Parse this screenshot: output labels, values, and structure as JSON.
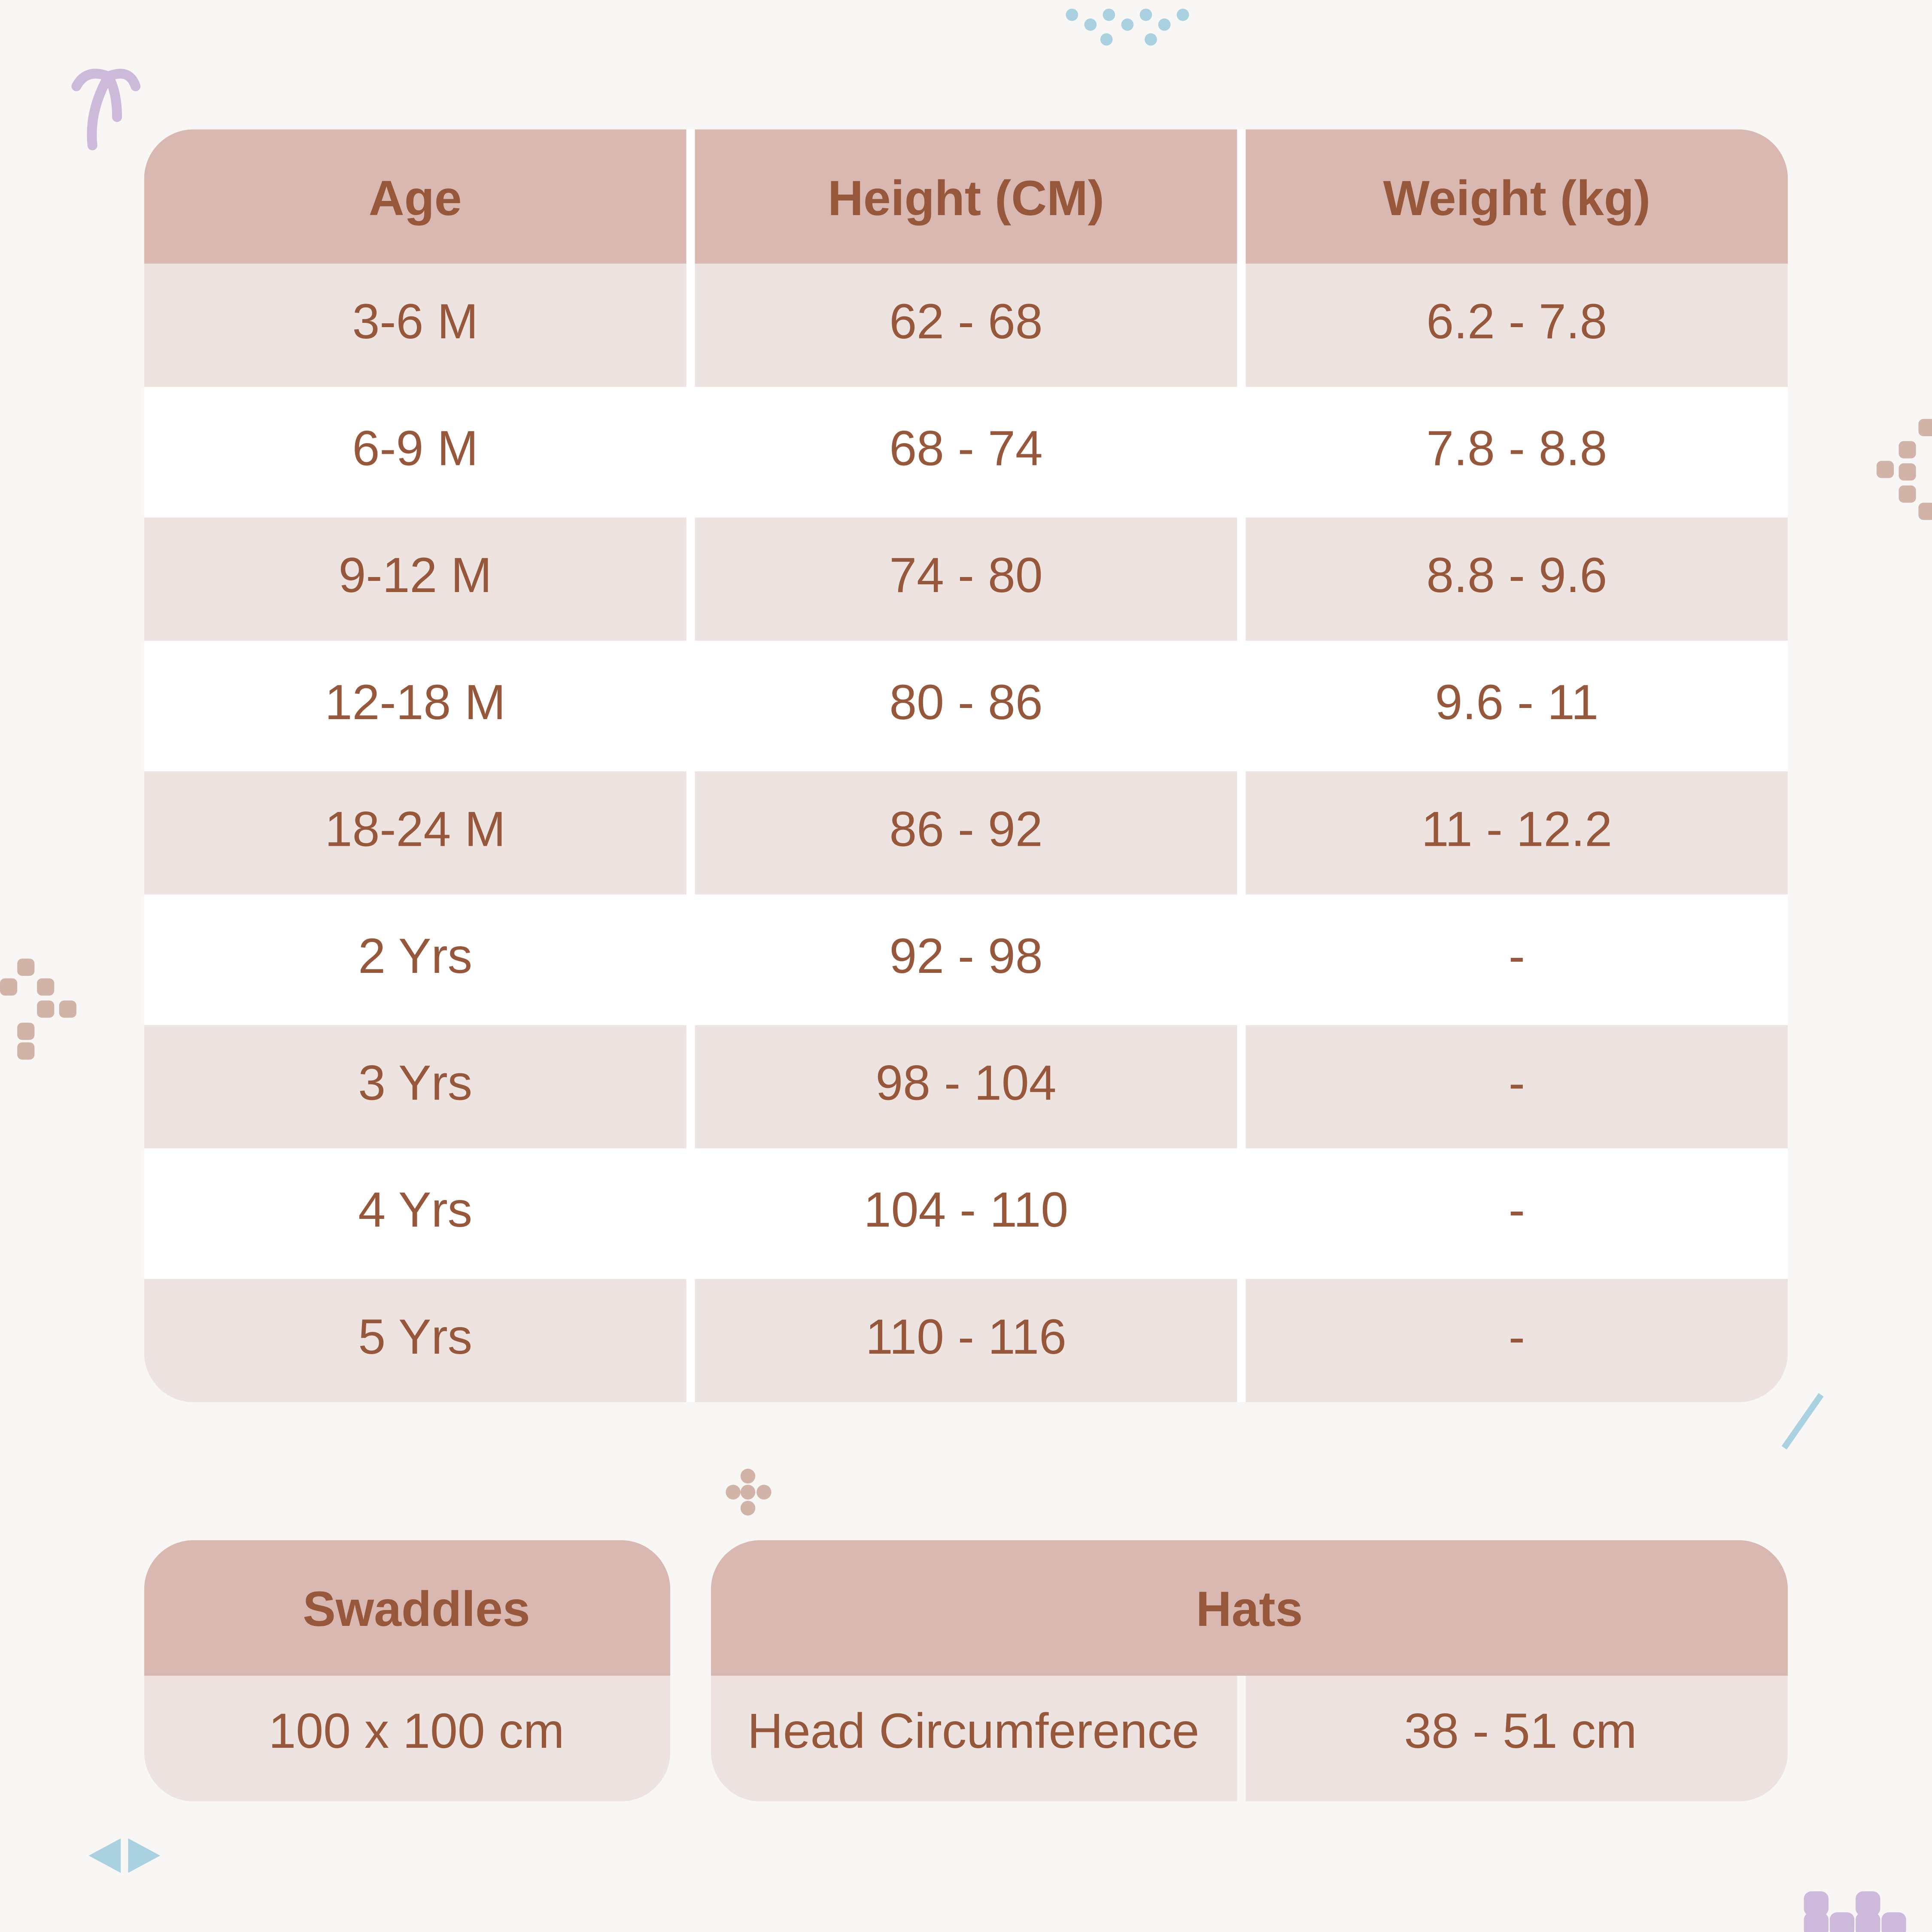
{
  "table": {
    "header": [
      "Age",
      "Height (CM)",
      "Weight (kg)"
    ],
    "rows": [
      [
        "3-6 M",
        "62 - 68",
        "6.2 - 7.8"
      ],
      [
        "6-9 M",
        "68 - 74",
        "7.8 - 8.8"
      ],
      [
        "9-12 M",
        "74 - 80",
        "8.8 - 9.6"
      ],
      [
        "12-18 M",
        "80 - 86",
        "9.6 - 11"
      ],
      [
        "18-24 M",
        "86 - 92",
        "11 - 12.2"
      ],
      [
        "2 Yrs",
        "92 - 98",
        "-"
      ],
      [
        "3 Yrs",
        "98 - 104",
        "-"
      ],
      [
        "4 Yrs",
        "104 - 110",
        "-"
      ],
      [
        "5 Yrs",
        "110 - 116",
        "-"
      ]
    ]
  },
  "swaddles": {
    "title": "Swaddles",
    "size": "100 x 100 cm"
  },
  "hats": {
    "title": "Hats",
    "label": "Head Circumference",
    "size": "38 - 51 cm"
  }
}
